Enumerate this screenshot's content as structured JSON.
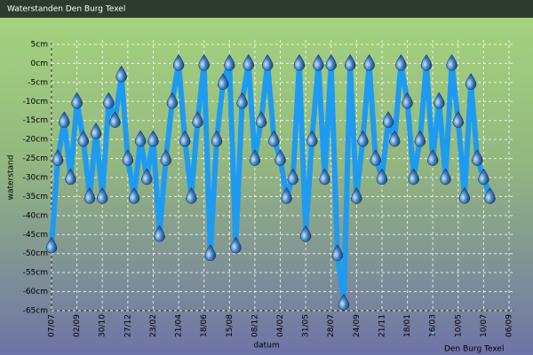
{
  "chart_data": {
    "type": "line",
    "title": "Waterstanden Den Burg Texel",
    "x_label": "datum",
    "y_label": "waterstand",
    "categories": [
      "07/07",
      null,
      null,
      null,
      "02/09",
      null,
      null,
      null,
      "30/10",
      null,
      null,
      null,
      "27/12",
      null,
      null,
      null,
      "23/02",
      null,
      null,
      null,
      "21/04",
      null,
      null,
      null,
      "18/06",
      null,
      null,
      null,
      "15/08",
      null,
      null,
      null,
      "08/12",
      null,
      null,
      null,
      "04/02",
      null,
      null,
      null,
      "31/05",
      null,
      null,
      null,
      "28/07",
      null,
      null,
      null,
      "24/09",
      null,
      null,
      null,
      "21/11",
      null,
      null,
      null,
      "18/01",
      null,
      null,
      null,
      "16/03",
      null,
      null,
      null,
      "10/05",
      null,
      null,
      null,
      "10/07",
      null,
      null,
      null,
      "06/09"
    ],
    "series": [
      {
        "name": "Den Burg Texel",
        "color": "#1e9bf0",
        "values": [
          -48,
          -25,
          -15,
          -30,
          -10,
          -20,
          -35,
          -18,
          -35,
          -10,
          -15,
          -3,
          -25,
          -35,
          -20,
          -30,
          -20,
          -45,
          -25,
          -10,
          0,
          -20,
          -35,
          -15,
          0,
          -50,
          -20,
          -5,
          0,
          -48,
          -10,
          0,
          -25,
          -15,
          0,
          -20,
          -25,
          -35,
          -30,
          0,
          -45,
          -20,
          0,
          -30,
          0,
          -50,
          -63,
          0,
          -35,
          -20,
          0,
          -25,
          -30,
          -15,
          -20,
          0,
          -10,
          -30,
          -20,
          0,
          -25,
          -10,
          -30,
          0,
          -15,
          -35,
          -5,
          -25,
          -30,
          -35,
          null,
          null,
          null
        ]
      }
    ],
    "ylim": [
      -65,
      5
    ],
    "yticks": [
      {
        "value": 5,
        "label": "5cm"
      },
      {
        "value": 0,
        "label": "0cm"
      },
      {
        "value": -5,
        "label": "-5cm"
      },
      {
        "value": -10,
        "label": "-10cm"
      },
      {
        "value": -15,
        "label": "-15cm"
      },
      {
        "value": -20,
        "label": "-20cm"
      },
      {
        "value": -25,
        "label": "-25cm"
      },
      {
        "value": -30,
        "label": "-30cm"
      },
      {
        "value": -35,
        "label": "-35cm"
      },
      {
        "value": -40,
        "label": "-40cm"
      },
      {
        "value": -45,
        "label": "-45cm"
      },
      {
        "value": -50,
        "label": "-50cm"
      },
      {
        "value": -55,
        "label": "-55cm"
      },
      {
        "value": -60,
        "label": "-60cm"
      },
      {
        "value": -65,
        "label": "-65cm"
      }
    ],
    "grid": true
  }
}
